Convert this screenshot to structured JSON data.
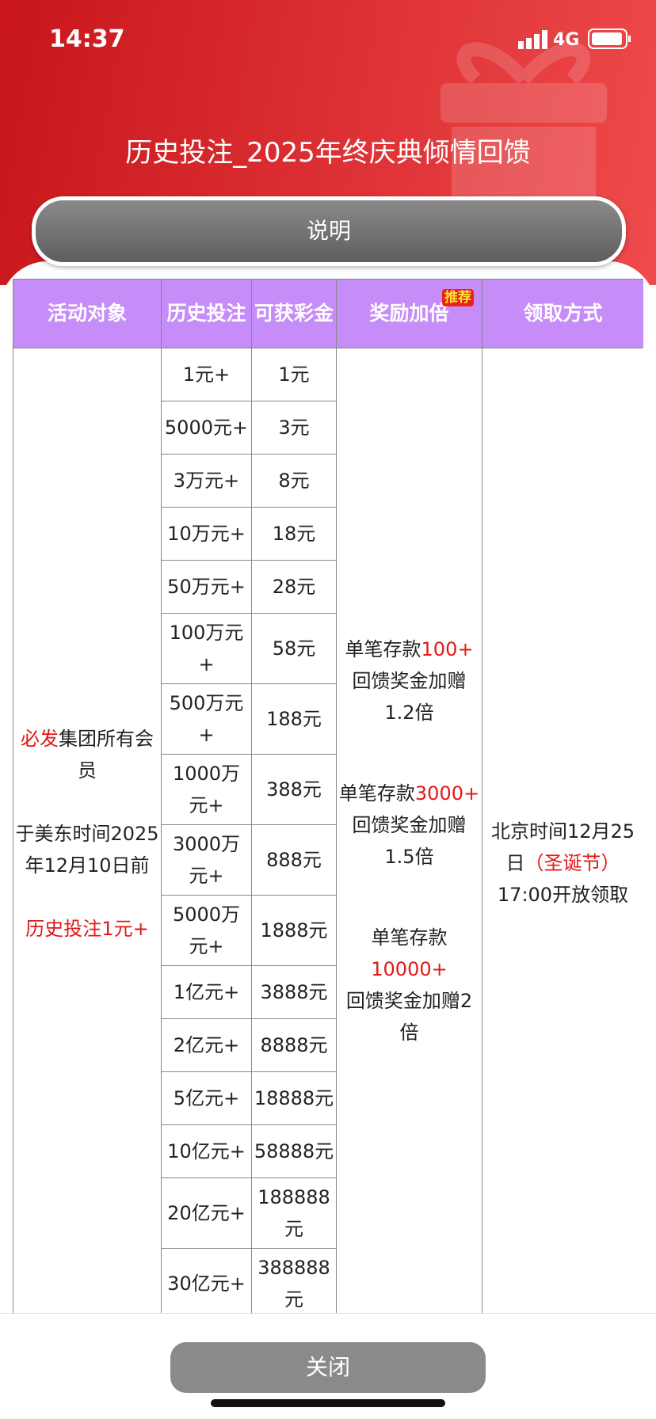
{
  "status_bar": {
    "time": "14:37",
    "network": "4G"
  },
  "header": {
    "title": "历史投注_2025年终庆典倾情回馈",
    "info_button": "说明"
  },
  "table": {
    "headers": [
      "活动对象",
      "历史投注",
      "可获彩金",
      "奖励加倍",
      "领取方式"
    ],
    "badge": "推荐",
    "rows": [
      [
        "1元+",
        "1元"
      ],
      [
        "5000元+",
        "3元"
      ],
      [
        "3万元+",
        "8元"
      ],
      [
        "10万元+",
        "18元"
      ],
      [
        "50万元+",
        "28元"
      ],
      [
        "100万元+",
        "58元"
      ],
      [
        "500万元+",
        "188元"
      ],
      [
        "1000万元+",
        "388元"
      ],
      [
        "3000万元+",
        "888元"
      ],
      [
        "5000万元+",
        "1888元"
      ],
      [
        "1亿元+",
        "3888元"
      ],
      [
        "2亿元+",
        "8888元"
      ],
      [
        "5亿元+",
        "18888元"
      ],
      [
        "10亿元+",
        "58888元"
      ],
      [
        "20亿元+",
        "188888元"
      ],
      [
        "30亿元+",
        "388888元"
      ]
    ],
    "target": {
      "highlight": "必发",
      "text": "集团所有会员",
      "time": "于美东时间2025年12月10日前",
      "condition": "历史投注1元+"
    },
    "tiers": [
      {
        "prefix": "单笔存款",
        "amount": "100+",
        "text": "回馈奖金加赠1.2倍"
      },
      {
        "prefix": "单笔存款",
        "amount": "3000+",
        "text": "回馈奖金加赠1.5倍"
      },
      {
        "prefix": "单笔存款",
        "amount": "10000+",
        "text": "回馈奖金加赠2倍"
      }
    ],
    "claim": {
      "text": "北京时间12月25日",
      "highlight": "（圣诞节）",
      "time": "17:00开放领取"
    }
  },
  "footer": {
    "close_button": "关闭"
  }
}
